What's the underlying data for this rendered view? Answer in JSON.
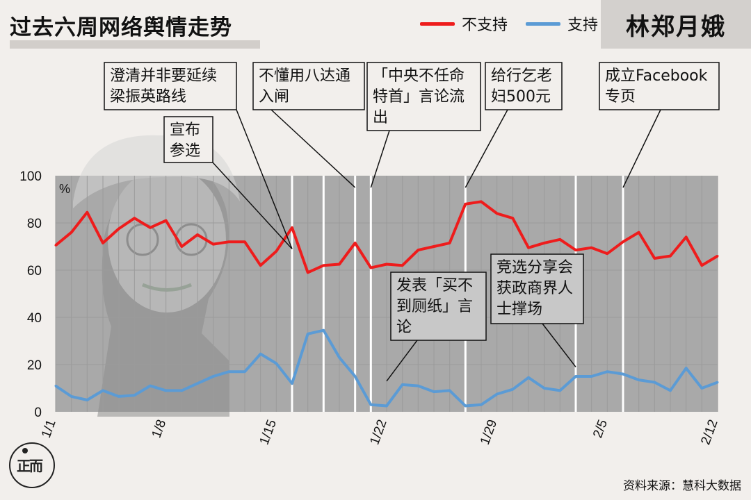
{
  "title": "过去六周网络舆情走势",
  "name_badge": "林郑月娥",
  "source": "资料来源：慧科大数据",
  "logo_text": "正而",
  "legend": [
    {
      "label": "不支持",
      "color": "#ee1c1c"
    },
    {
      "label": "支持",
      "color": "#5b9bd5"
    }
  ],
  "chart_data": {
    "type": "line",
    "unit_label": "%",
    "ylim": [
      0,
      100
    ],
    "yticks": [
      0,
      20,
      40,
      60,
      80,
      100
    ],
    "xticks": [
      {
        "day": 1,
        "label": "1/1"
      },
      {
        "day": 8,
        "label": "1/8"
      },
      {
        "day": 15,
        "label": "1/15"
      },
      {
        "day": 22,
        "label": "1/22"
      },
      {
        "day": 29,
        "label": "1/29"
      },
      {
        "day": 36,
        "label": "2/5"
      },
      {
        "day": 43,
        "label": "2/12"
      }
    ],
    "x_days": [
      1,
      2,
      3,
      4,
      5,
      6,
      7,
      8,
      9,
      10,
      11,
      12,
      13,
      14,
      15,
      16,
      17,
      18,
      19,
      20,
      21,
      22,
      23,
      24,
      25,
      26,
      27,
      28,
      29,
      30,
      31,
      32,
      33,
      34,
      35,
      36,
      37,
      38,
      39,
      40,
      41,
      42,
      43
    ],
    "series": [
      {
        "name": "不支持",
        "color": "#ee1c1c",
        "values": [
          70.5,
          76,
          84.5,
          71.5,
          77.5,
          82,
          78,
          81,
          70,
          75,
          71,
          72,
          72,
          62,
          68,
          78,
          59,
          62,
          62.5,
          71.5,
          61,
          62.5,
          62,
          68.5,
          70,
          71.5,
          88,
          89,
          84,
          82,
          69.5,
          71.5,
          73,
          68.5,
          69.5,
          67,
          72,
          76,
          65,
          66,
          74,
          62,
          66
        ]
      },
      {
        "name": "支持",
        "color": "#5b9bd5",
        "values": [
          11,
          6.5,
          5,
          9,
          6.5,
          7,
          11,
          9,
          9,
          12,
          15,
          17,
          17,
          24.5,
          20.5,
          12,
          33,
          34.5,
          23,
          15,
          3,
          2.5,
          11.5,
          11,
          8.5,
          9,
          2.5,
          3,
          7.5,
          9.5,
          14.5,
          10,
          9,
          15,
          15,
          17,
          16,
          13.5,
          12.5,
          9,
          18.5,
          10,
          12.5
        ]
      }
    ],
    "event_lines": [
      16,
      18,
      20,
      21,
      27,
      34,
      37
    ],
    "annotations": [
      {
        "lines": [
          "澄清并非要延续",
          "梁振英路线"
        ],
        "target_day": 16,
        "target_y": 69
      },
      {
        "lines": [
          "宣布",
          "参选"
        ],
        "target_day": 16,
        "target_y": 69
      },
      {
        "lines": [
          "不懂用八达通",
          "入闸"
        ],
        "target_day": 20,
        "target_y": 95
      },
      {
        "lines": [
          "「中央不任命",
          "特首」言论流",
          "出"
        ],
        "target_day": 21,
        "target_y": 95
      },
      {
        "lines": [
          "给行乞老",
          "妇500元"
        ],
        "target_day": 27,
        "target_y": 95
      },
      {
        "lines": [
          "成立Facebook",
          "专页"
        ],
        "target_day": 37,
        "target_y": 95
      },
      {
        "lines": [
          "发表「买不",
          "到厕纸」言",
          "论"
        ],
        "target_day": 22,
        "target_y": 13
      },
      {
        "lines": [
          "竞选分享会",
          "获政商界人",
          "士撑场"
        ],
        "target_day": 34,
        "target_y": 19
      }
    ]
  }
}
